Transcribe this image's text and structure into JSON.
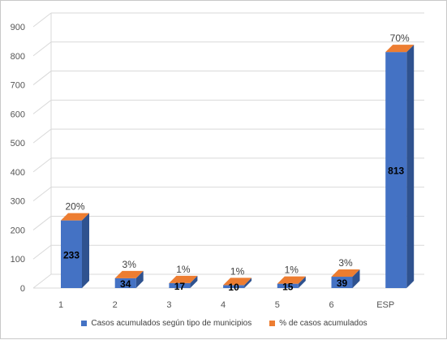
{
  "chart_data": {
    "type": "bar",
    "categories": [
      "1",
      "2",
      "3",
      "4",
      "5",
      "6",
      "ESP"
    ],
    "series": [
      {
        "name": "Casos acumulados según tipo de municipios",
        "values": [
          233,
          34,
          17,
          10,
          15,
          39,
          813
        ],
        "color": "#4472C4"
      },
      {
        "name": "% de casos acumulados",
        "values": [
          "20%",
          "3%",
          "1%",
          "1%",
          "1%",
          "3%",
          "70%"
        ],
        "color": "#ED7D31"
      }
    ],
    "yticks": [
      "0",
      "100",
      "200",
      "300",
      "400",
      "500",
      "600",
      "700",
      "800",
      "900"
    ],
    "ylim": [
      0,
      900
    ],
    "grid": true,
    "legend_position": "bottom",
    "style": "3d-column"
  }
}
